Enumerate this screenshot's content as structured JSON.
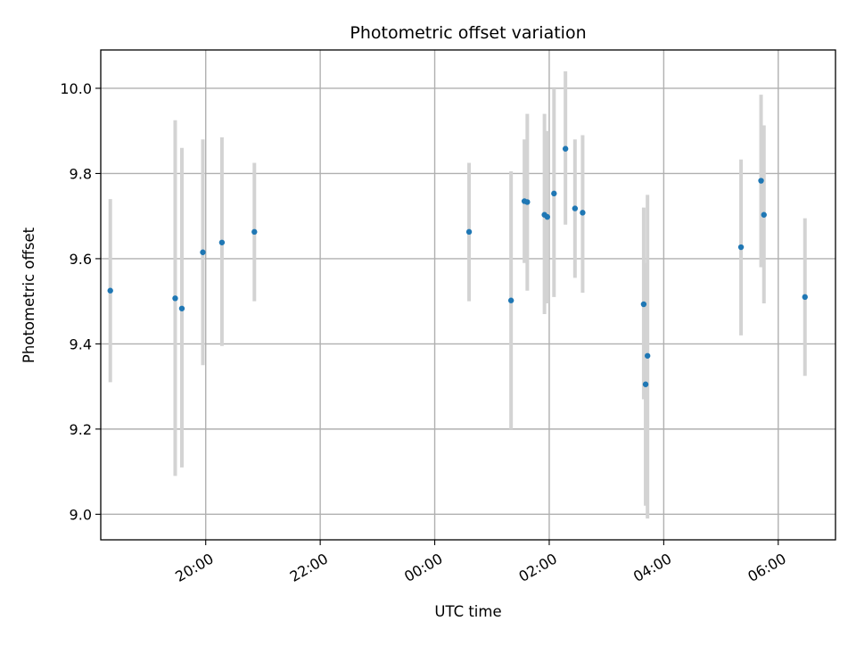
{
  "chart_data": {
    "type": "scatter",
    "title": "Photometric offset variation",
    "xlabel": "UTC time",
    "ylabel": "Photometric offset",
    "xlim": [
      "18:10",
      "31:00"
    ],
    "ylim": [
      8.94,
      10.09
    ],
    "grid": true,
    "legend": "none",
    "colors": {
      "marker": "#1f77b4",
      "errorbar": "#d3d3d3"
    },
    "x_ticks": [
      {
        "t": "20:00",
        "label": "20:00"
      },
      {
        "t": "22:00",
        "label": "22:00"
      },
      {
        "t": "24:00",
        "label": "00:00"
      },
      {
        "t": "26:00",
        "label": "02:00"
      },
      {
        "t": "28:00",
        "label": "04:00"
      },
      {
        "t": "30:00",
        "label": "06:00"
      }
    ],
    "y_ticks": [
      {
        "v": 9.0,
        "label": "9.0"
      },
      {
        "v": 9.2,
        "label": "9.2"
      },
      {
        "v": 9.4,
        "label": "9.4"
      },
      {
        "v": 9.6,
        "label": "9.6"
      },
      {
        "v": 9.8,
        "label": "9.8"
      },
      {
        "v": 10.0,
        "label": "10.0"
      }
    ],
    "points": [
      {
        "t": "18:20",
        "y": 9.525,
        "lo": 9.31,
        "hi": 9.74
      },
      {
        "t": "19:28",
        "y": 9.507,
        "lo": 9.09,
        "hi": 9.925
      },
      {
        "t": "19:35",
        "y": 9.483,
        "lo": 9.11,
        "hi": 9.86
      },
      {
        "t": "19:57",
        "y": 9.615,
        "lo": 9.35,
        "hi": 9.88
      },
      {
        "t": "20:17",
        "y": 9.638,
        "lo": 9.395,
        "hi": 9.885
      },
      {
        "t": "20:51",
        "y": 9.663,
        "lo": 9.5,
        "hi": 9.825
      },
      {
        "t": "24:36",
        "y": 9.663,
        "lo": 9.5,
        "hi": 9.825
      },
      {
        "t": "25:20",
        "y": 9.502,
        "lo": 9.2,
        "hi": 9.805
      },
      {
        "t": "25:34",
        "y": 9.735,
        "lo": 9.59,
        "hi": 9.88
      },
      {
        "t": "25:37",
        "y": 9.733,
        "lo": 9.525,
        "hi": 9.94
      },
      {
        "t": "25:55",
        "y": 9.703,
        "lo": 9.47,
        "hi": 9.94
      },
      {
        "t": "25:58",
        "y": 9.698,
        "lo": 9.495,
        "hi": 9.9
      },
      {
        "t": "26:05",
        "y": 9.753,
        "lo": 9.51,
        "hi": 10.0
      },
      {
        "t": "26:17",
        "y": 9.858,
        "lo": 9.68,
        "hi": 10.04
      },
      {
        "t": "26:27",
        "y": 9.718,
        "lo": 9.555,
        "hi": 9.88
      },
      {
        "t": "26:35",
        "y": 9.708,
        "lo": 9.52,
        "hi": 9.89
      },
      {
        "t": "27:39",
        "y": 9.493,
        "lo": 9.27,
        "hi": 9.72
      },
      {
        "t": "27:41",
        "y": 9.305,
        "lo": 9.02,
        "hi": 9.59
      },
      {
        "t": "27:43",
        "y": 9.372,
        "lo": 8.99,
        "hi": 9.75
      },
      {
        "t": "29:21",
        "y": 9.627,
        "lo": 9.42,
        "hi": 9.833
      },
      {
        "t": "29:42",
        "y": 9.783,
        "lo": 9.58,
        "hi": 9.985
      },
      {
        "t": "29:45",
        "y": 9.703,
        "lo": 9.495,
        "hi": 9.913
      },
      {
        "t": "30:28",
        "y": 9.51,
        "lo": 9.325,
        "hi": 9.695
      }
    ]
  }
}
